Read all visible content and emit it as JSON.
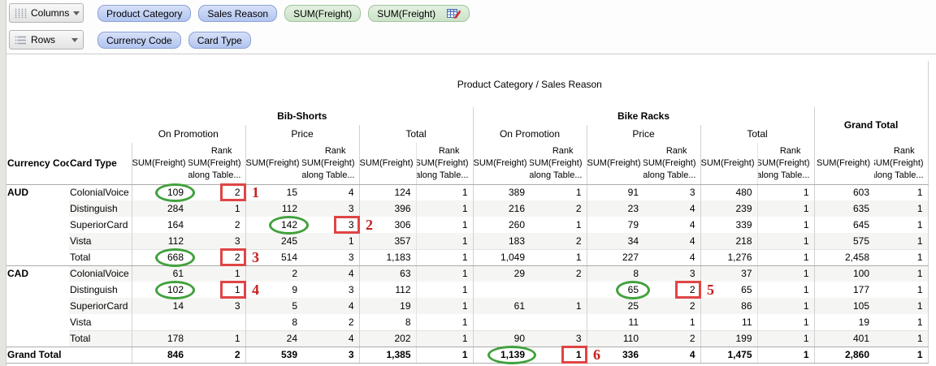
{
  "shelves": {
    "columns": {
      "label": "Columns",
      "pills": [
        {
          "label": "Product Category",
          "kind": "dimension"
        },
        {
          "label": "Sales Reason",
          "kind": "dimension"
        },
        {
          "label": "SUM(Freight)",
          "kind": "measure"
        },
        {
          "label": "SUM(Freight)",
          "kind": "measure",
          "table_calc": true
        }
      ]
    },
    "rows": {
      "label": "Rows",
      "pills": [
        {
          "label": "Currency Code",
          "kind": "dimension"
        },
        {
          "label": "Card Type",
          "kind": "dimension"
        }
      ]
    }
  },
  "table": {
    "title": "Product Category / Sales Reason",
    "row_header_labels": [
      "Currency Code",
      "Card Type"
    ],
    "categories": [
      {
        "label": "Bib-Shorts",
        "reasons": [
          "On Promotion",
          "Price",
          "Total"
        ]
      },
      {
        "label": "Bike Racks",
        "reasons": [
          "On Promotion",
          "Price",
          "Total"
        ]
      }
    ],
    "grand_total_label": "Grand Total",
    "measure_labels": {
      "sum": "SUM(Freight)",
      "rank_lines": [
        "Rank",
        "SUM(Freight)",
        "along Table..."
      ]
    },
    "rows": [
      {
        "currency": "AUD",
        "card_type": "ColonialVoice",
        "values": [
          "109",
          "2",
          "15",
          "4",
          "124",
          "1",
          "389",
          "1",
          "91",
          "3",
          "480",
          "1",
          "603",
          "1"
        ]
      },
      {
        "currency": "",
        "card_type": "Distinguish",
        "values": [
          "284",
          "1",
          "112",
          "3",
          "396",
          "1",
          "216",
          "2",
          "23",
          "4",
          "239",
          "1",
          "635",
          "1"
        ]
      },
      {
        "currency": "",
        "card_type": "SuperiorCard",
        "values": [
          "164",
          "2",
          "142",
          "3",
          "306",
          "1",
          "260",
          "1",
          "79",
          "4",
          "339",
          "1",
          "645",
          "1"
        ]
      },
      {
        "currency": "",
        "card_type": "Vista",
        "values": [
          "112",
          "3",
          "245",
          "1",
          "357",
          "1",
          "183",
          "2",
          "34",
          "4",
          "218",
          "1",
          "575",
          "1"
        ]
      },
      {
        "currency": "",
        "card_type": "Total",
        "values": [
          "668",
          "2",
          "514",
          "3",
          "1,183",
          "1",
          "1,049",
          "1",
          "227",
          "4",
          "1,276",
          "1",
          "2,458",
          "1"
        ]
      },
      {
        "currency": "CAD",
        "card_type": "ColonialVoice",
        "values": [
          "61",
          "1",
          "2",
          "4",
          "63",
          "1",
          "29",
          "2",
          "8",
          "3",
          "37",
          "1",
          "100",
          "1"
        ]
      },
      {
        "currency": "",
        "card_type": "Distinguish",
        "values": [
          "102",
          "1",
          "9",
          "3",
          "112",
          "1",
          "",
          "",
          "65",
          "2",
          "65",
          "1",
          "177",
          "1"
        ]
      },
      {
        "currency": "",
        "card_type": "SuperiorCard",
        "values": [
          "14",
          "3",
          "5",
          "4",
          "19",
          "1",
          "61",
          "1",
          "25",
          "2",
          "86",
          "1",
          "105",
          "1"
        ]
      },
      {
        "currency": "",
        "card_type": "Vista",
        "values": [
          "",
          "",
          "8",
          "2",
          "8",
          "1",
          "",
          "",
          "11",
          "1",
          "11",
          "1",
          "19",
          "1"
        ]
      },
      {
        "currency": "",
        "card_type": "Total",
        "values": [
          "178",
          "1",
          "24",
          "4",
          "202",
          "1",
          "90",
          "3",
          "110",
          "2",
          "199",
          "1",
          "401",
          "1"
        ]
      },
      {
        "currency": "Grand Total",
        "card_type": "",
        "values": [
          "846",
          "2",
          "539",
          "3",
          "1,385",
          "1",
          "1,139",
          "1",
          "336",
          "4",
          "1,475",
          "1",
          "2,860",
          "1"
        ]
      }
    ]
  },
  "annotations": {
    "ovals": [
      {
        "row": 0,
        "col": 0
      },
      {
        "row": 2,
        "col": 2
      },
      {
        "row": 4,
        "col": 0
      },
      {
        "row": 6,
        "col": 0
      },
      {
        "row": 6,
        "col": 8
      },
      {
        "row": 10,
        "col": 6
      }
    ],
    "boxes": [
      {
        "row": 0,
        "col": 1,
        "label": "1"
      },
      {
        "row": 2,
        "col": 3,
        "label": "2"
      },
      {
        "row": 4,
        "col": 1,
        "label": "3"
      },
      {
        "row": 6,
        "col": 1,
        "label": "4"
      },
      {
        "row": 6,
        "col": 9,
        "label": "5"
      },
      {
        "row": 10,
        "col": 7,
        "label": "6"
      }
    ],
    "colors": {
      "oval": "#41a13c",
      "box": "#df4545",
      "label": "#c42020"
    }
  }
}
